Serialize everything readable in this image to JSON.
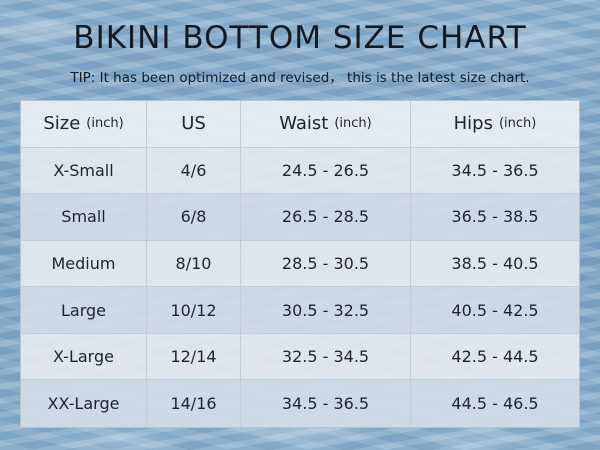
{
  "title": "BIKINI BOTTOM SIZE CHART",
  "tip": "TIP: It has been optimized and revised， this is the latest size chart.",
  "table": {
    "headers": [
      {
        "label": "Size",
        "unit": "(inch)"
      },
      {
        "label": "US",
        "unit": ""
      },
      {
        "label": "Waist",
        "unit": "(inch)"
      },
      {
        "label": "Hips",
        "unit": "(inch)"
      }
    ],
    "rows": [
      [
        "X-Small",
        "4/6",
        "24.5 - 26.5",
        "34.5 - 36.5"
      ],
      [
        "Small",
        "6/8",
        "26.5 - 28.5",
        "36.5 - 38.5"
      ],
      [
        "Medium",
        "8/10",
        "28.5 - 30.5",
        "38.5 - 40.5"
      ],
      [
        "Large",
        "10/12",
        "30.5 - 32.5",
        "40.5 - 42.5"
      ],
      [
        "X-Large",
        "12/14",
        "32.5 - 34.5",
        "42.5 - 44.5"
      ],
      [
        "XX-Large",
        "14/16",
        "34.5 - 36.5",
        "44.5 - 46.5"
      ]
    ]
  }
}
